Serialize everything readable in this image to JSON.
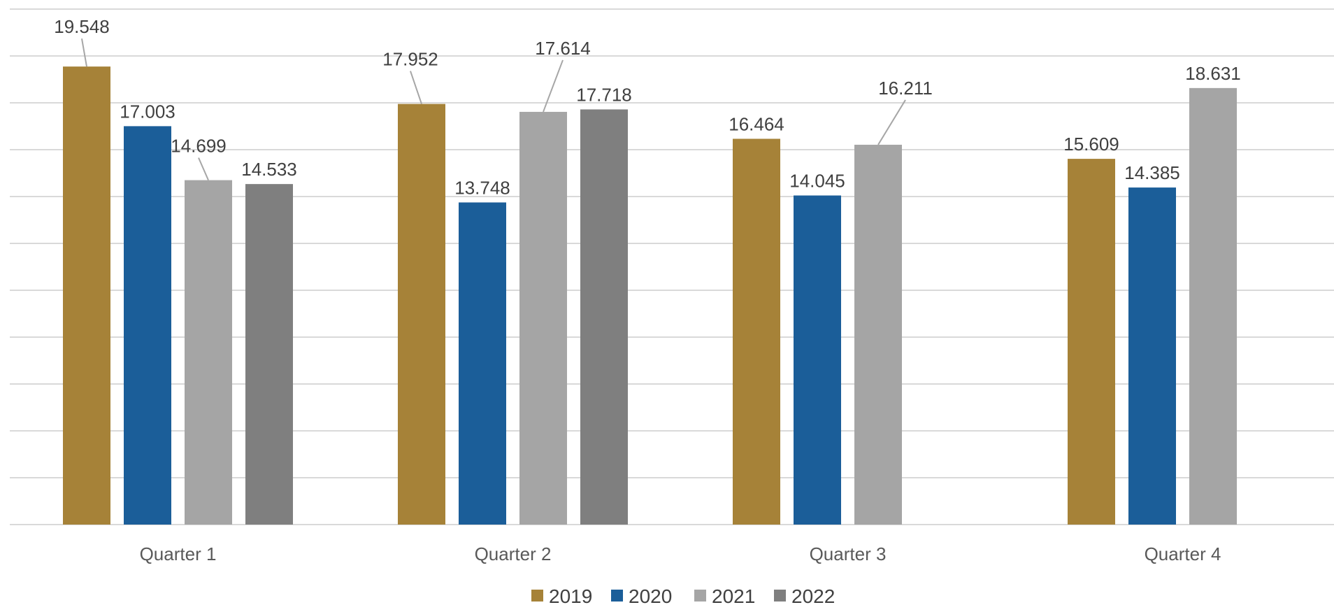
{
  "chart_data": {
    "type": "bar",
    "categories": [
      "Quarter 1",
      "Quarter 2",
      "Quarter 3",
      "Quarter 4"
    ],
    "series": [
      {
        "name": "2019",
        "color": "#A68238",
        "values": [
          19.548,
          17.952,
          16.464,
          15.609
        ],
        "labels": [
          "19.548",
          "17.952",
          "16.464",
          "15.609"
        ]
      },
      {
        "name": "2020",
        "color": "#1B5E99",
        "values": [
          17.003,
          13.748,
          14.045,
          14.385
        ],
        "labels": [
          "17.003",
          "13.748",
          "14.045",
          "14.385"
        ]
      },
      {
        "name": "2021",
        "color": "#A5A5A5",
        "values": [
          14.699,
          17.614,
          16.211,
          18.631
        ],
        "labels": [
          "14.699",
          "17.614",
          "16.211",
          "18.631"
        ]
      },
      {
        "name": "2022",
        "color": "#7F7F7F",
        "values": [
          14.533,
          17.718,
          null,
          null
        ],
        "labels": [
          "14.533",
          "17.718",
          "",
          ""
        ]
      }
    ],
    "ylim": [
      0,
      22
    ],
    "grid": true,
    "legend_position": "bottom",
    "title": "",
    "xlabel": "",
    "ylabel": ""
  }
}
